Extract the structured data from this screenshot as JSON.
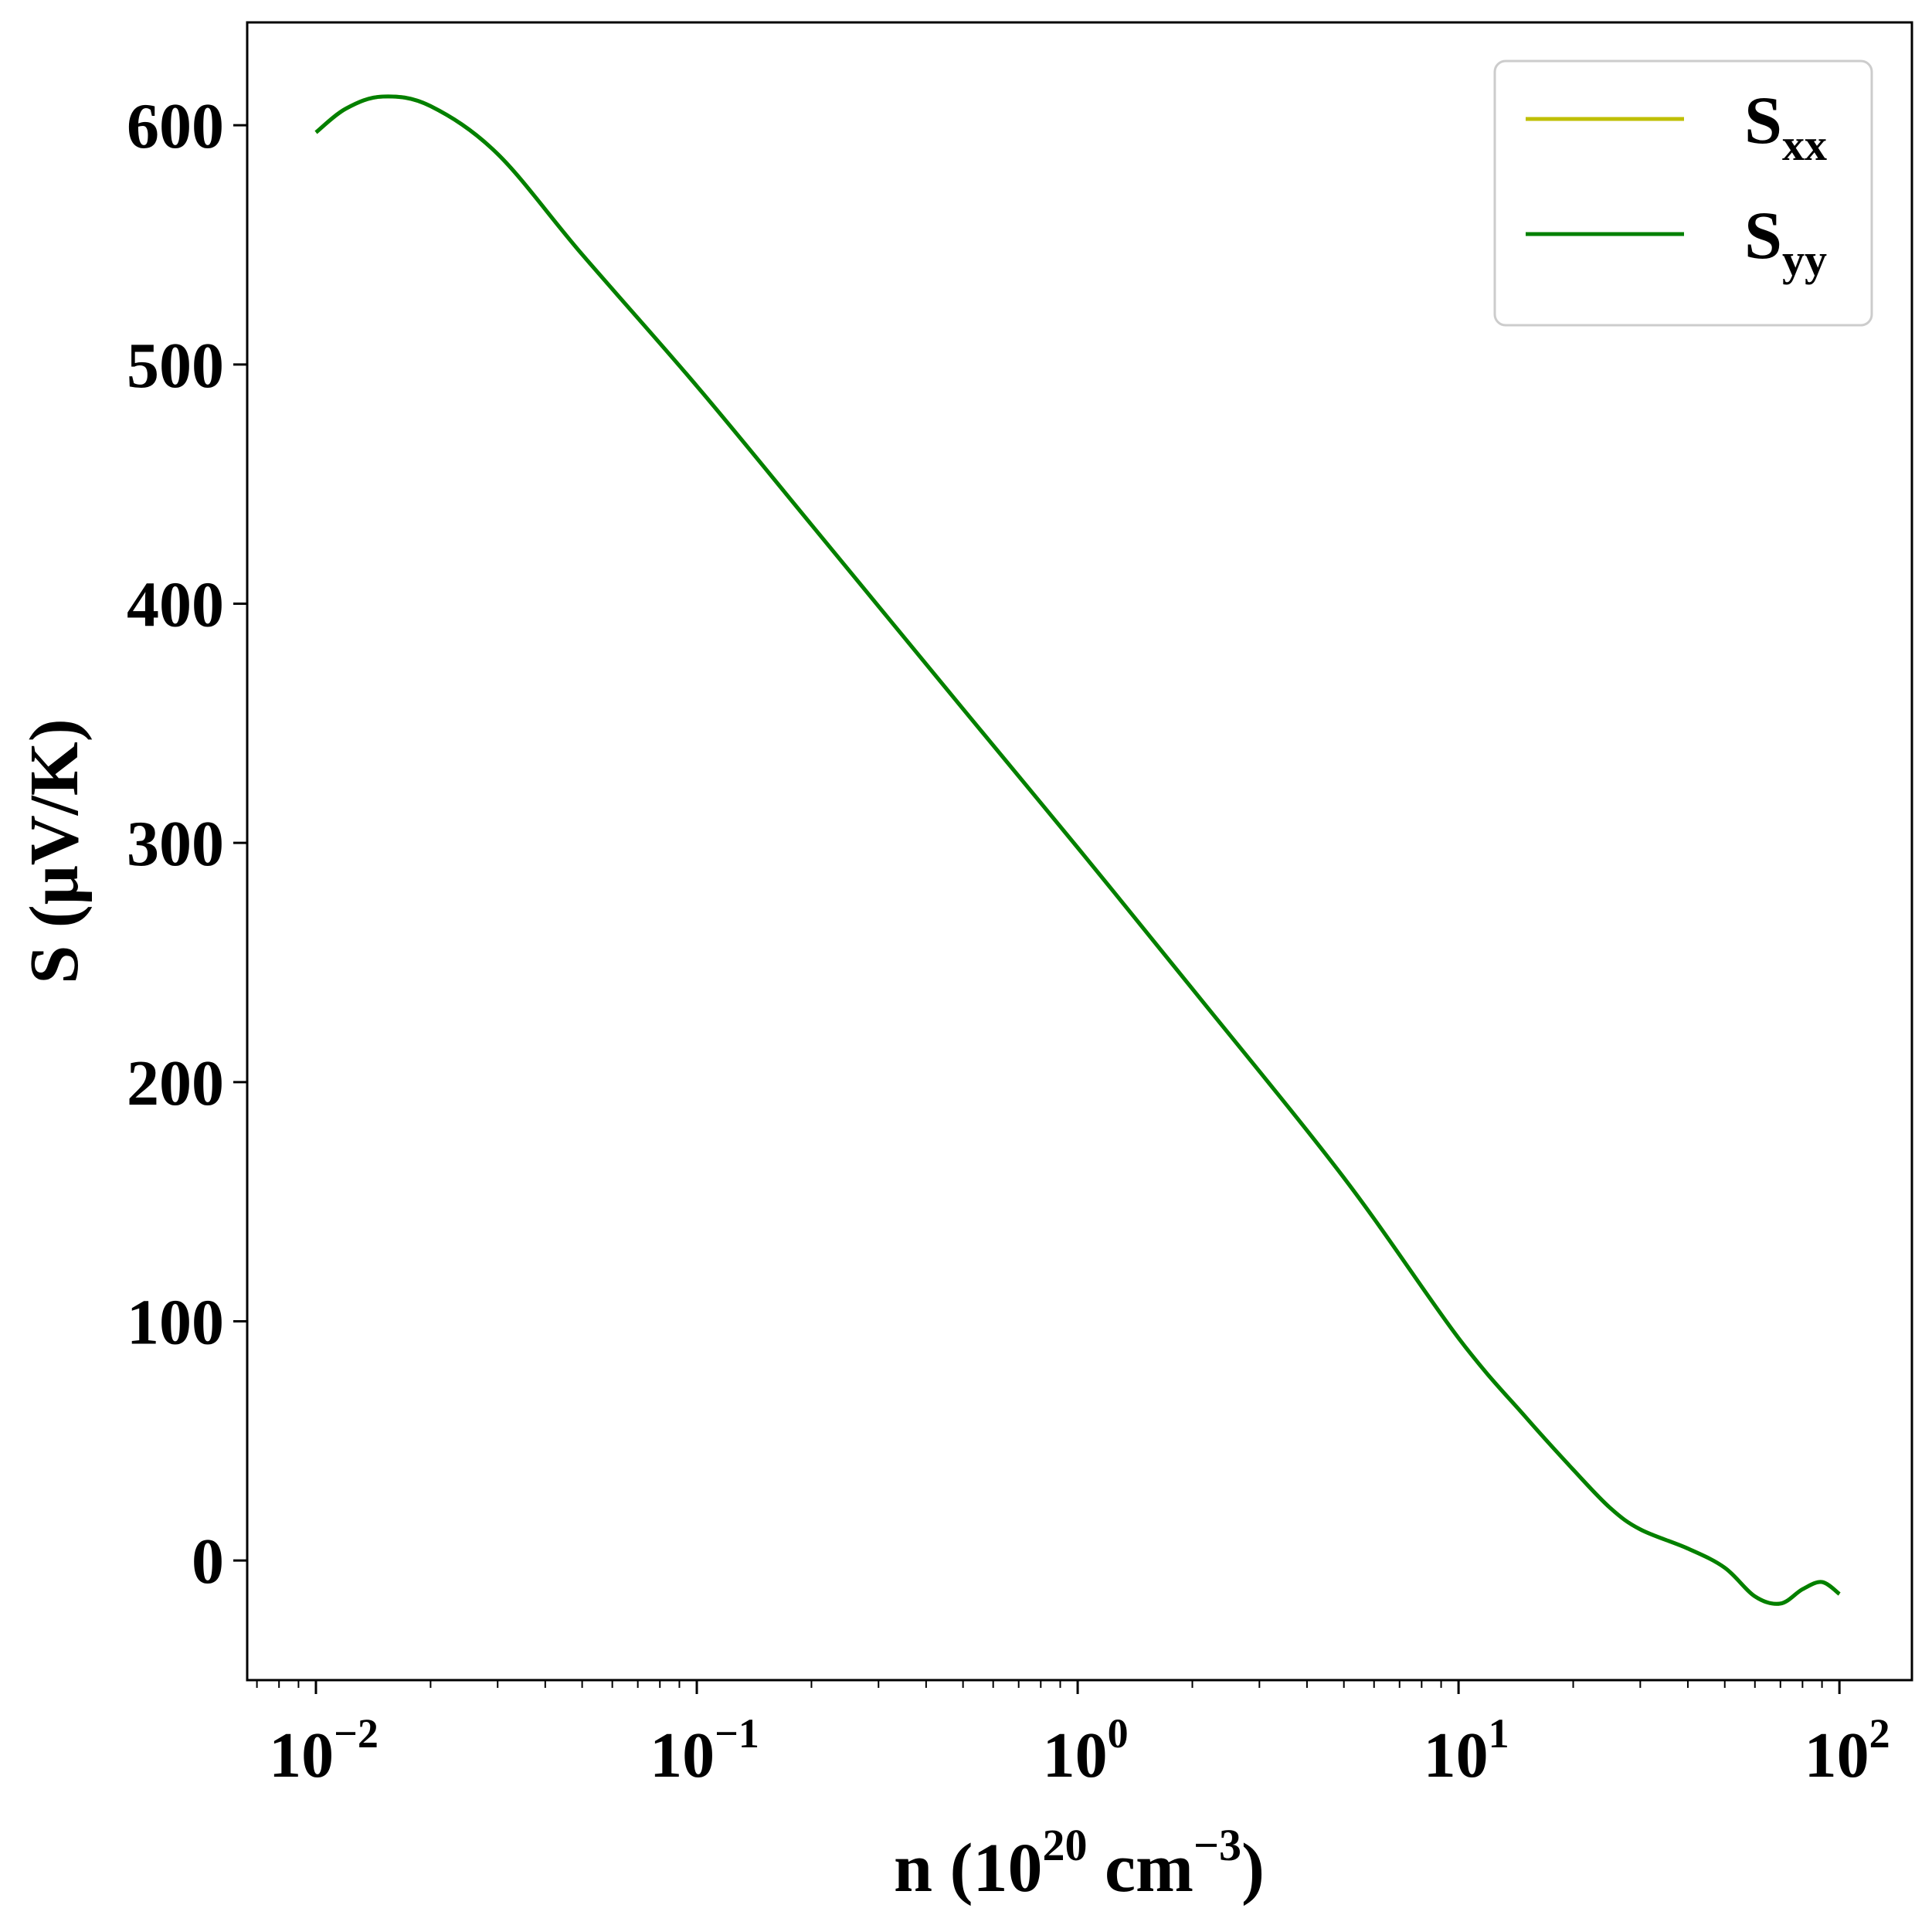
{
  "chart_data": {
    "type": "line",
    "xscale": "log",
    "xlim": [
      0.0066,
      155
    ],
    "ylim": [
      -50,
      643
    ],
    "grid": false,
    "legend_position": "top-right",
    "xlabel": {
      "prefix": "n (10",
      "sup1": "20",
      "mid": " cm",
      "sup2": "−3",
      "suffix": ")"
    },
    "ylabel": "S (μV/K)",
    "x_ticks": [
      {
        "value": 0.01,
        "base": "10",
        "exp": "−2"
      },
      {
        "value": 0.1,
        "base": "10",
        "exp": "−1"
      },
      {
        "value": 1,
        "base": "10",
        "exp": "0"
      },
      {
        "value": 10,
        "base": "10",
        "exp": "1"
      },
      {
        "value": 100,
        "base": "10",
        "exp": "2"
      }
    ],
    "y_ticks": [
      0,
      100,
      200,
      300,
      400,
      500,
      600
    ],
    "series": [
      {
        "name": "S_xx",
        "label_main": "S",
        "label_sub": "xx",
        "color": "#bfbf00",
        "x": [
          0.01,
          0.012,
          0.015,
          0.02,
          0.03,
          0.05,
          0.1,
          0.2,
          0.5,
          1,
          2,
          5,
          10,
          15,
          20,
          25,
          30,
          40,
          50,
          60,
          70,
          80,
          90,
          100
        ],
        "y": [
          597,
          607,
          612,
          608,
          588,
          546,
          491,
          433,
          356,
          298,
          239,
          160,
          93,
          60,
          38,
          22,
          13,
          5,
          -3,
          -15,
          -18,
          -12,
          -9,
          -14
        ]
      },
      {
        "name": "S_yy",
        "label_main": "S",
        "label_sub": "yy",
        "color": "#008000",
        "x": [
          0.01,
          0.012,
          0.015,
          0.02,
          0.03,
          0.05,
          0.1,
          0.2,
          0.5,
          1,
          2,
          5,
          10,
          15,
          20,
          25,
          30,
          40,
          50,
          60,
          70,
          80,
          90,
          100
        ],
        "y": [
          597,
          607,
          612,
          608,
          588,
          546,
          491,
          433,
          356,
          298,
          239,
          160,
          93,
          60,
          38,
          22,
          13,
          5,
          -3,
          -15,
          -18,
          -12,
          -9,
          -14
        ]
      }
    ]
  }
}
